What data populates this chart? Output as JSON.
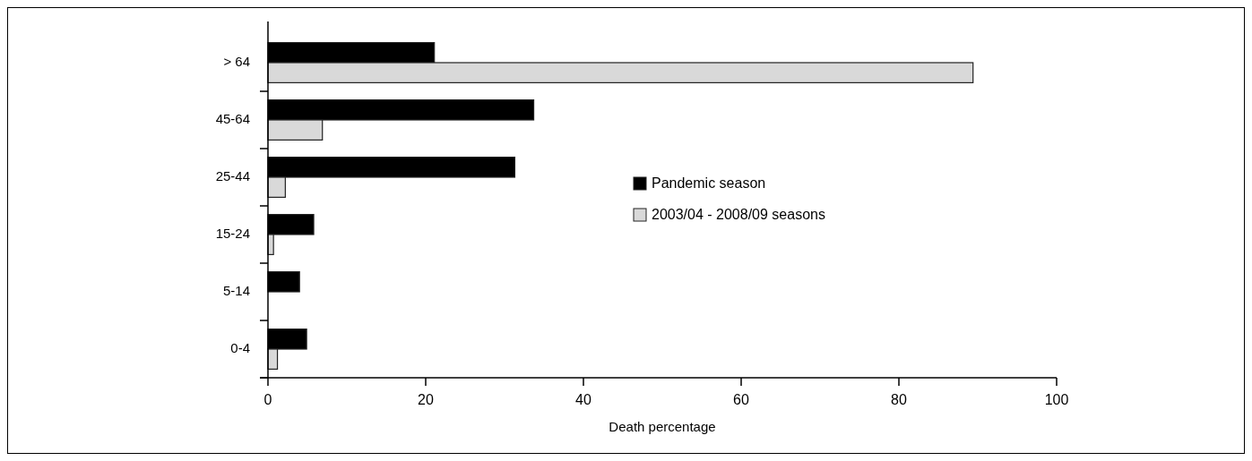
{
  "chart_data": {
    "type": "bar",
    "orientation": "horizontal",
    "xlabel": "Death percentage",
    "categories": [
      "> 64",
      "45-64",
      "25-44",
      "15-24",
      "5-14",
      "0-4"
    ],
    "series": [
      {
        "name": "Pandemic season",
        "color": "#000000",
        "values": [
          21.1,
          33.7,
          31.3,
          5.8,
          4.0,
          4.9
        ]
      },
      {
        "name": "2003/04 - 2008/09 seasons",
        "color": "#d9d9d9",
        "values": [
          89.4,
          6.9,
          2.2,
          0.7,
          0,
          1.2
        ]
      }
    ],
    "xlim": [
      0,
      100
    ],
    "xticks": [
      0,
      20,
      40,
      60,
      80,
      100
    ],
    "grid": false,
    "legend": "right"
  }
}
